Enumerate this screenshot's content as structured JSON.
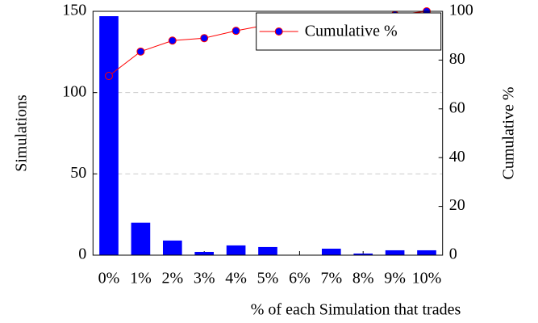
{
  "chart_data": {
    "type": "bar_line",
    "categories": [
      "0%",
      "1%",
      "2%",
      "3%",
      "4%",
      "5%",
      "6%",
      "7%",
      "8%",
      "9%",
      "10%"
    ],
    "series": [
      {
        "color": "#0000ff",
        "values": [
          147,
          20,
          9,
          2,
          6,
          5,
          0,
          4,
          1,
          3,
          3
        ]
      },
      {
        "name": "Cumulative %",
        "color": "#ff0000",
        "marker_color": "#0000ff",
        "axis": "y2",
        "values": [
          73.5,
          83.5,
          88,
          89,
          92,
          94.5,
          94.5,
          96.5,
          97,
          98.5,
          100
        ]
      }
    ],
    "xlabel": "% of each Simulation that trades",
    "ylabel": "Simulations",
    "y2label": "Cumulative %",
    "ylim": [
      0,
      150
    ],
    "yticks": [
      0,
      50,
      100,
      150
    ],
    "y2lim": [
      0,
      100
    ],
    "y2ticks": [
      0,
      20,
      40,
      60,
      80,
      100
    ],
    "grid": true,
    "legend": "upper right"
  }
}
